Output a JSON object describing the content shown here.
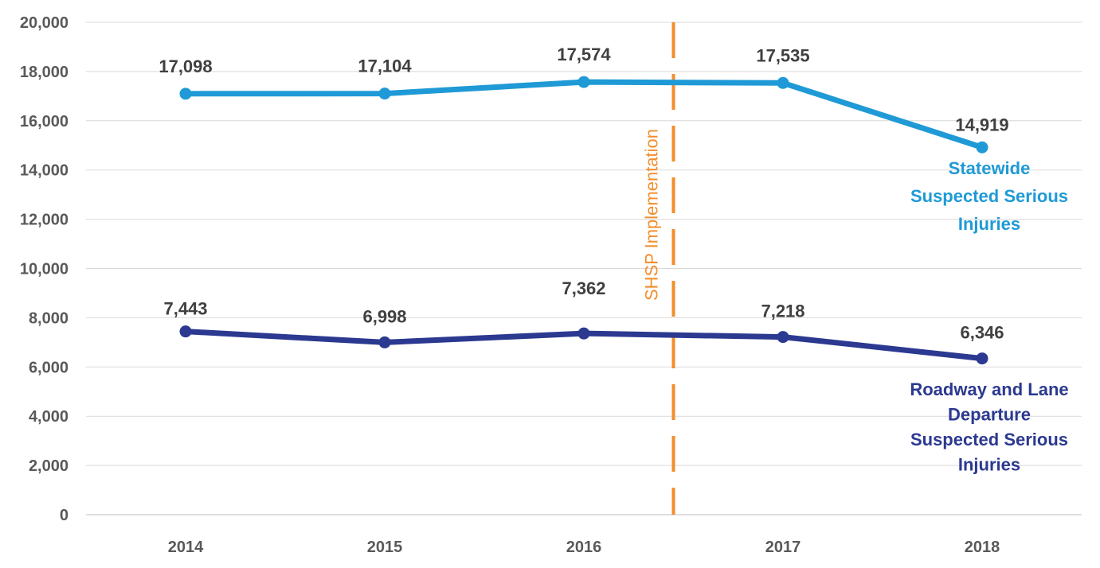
{
  "chart_data": {
    "type": "line",
    "x": [
      "2014",
      "2015",
      "2016",
      "2017",
      "2018"
    ],
    "ylim": [
      0,
      20000
    ],
    "ytick_step": 2000,
    "yticks": [
      "0",
      "2,000",
      "4,000",
      "6,000",
      "8,000",
      "10,000",
      "12,000",
      "14,000",
      "16,000",
      "18,000",
      "20,000"
    ],
    "grid": true,
    "series": [
      {
        "name_lines": [
          "Statewide",
          "Suspected Serious",
          "Injuries"
        ],
        "values": [
          17098,
          17104,
          17574,
          17535,
          14919
        ],
        "labels": [
          "17,098",
          "17,104",
          "17,574",
          "17,535",
          "14,919"
        ],
        "color": "#1f9ad6"
      },
      {
        "name_lines": [
          "Roadway and Lane",
          "Departure",
          "Suspected Serious",
          "Injuries"
        ],
        "values": [
          7443,
          6998,
          7362,
          7218,
          6346
        ],
        "labels": [
          "7,443",
          "6,998",
          "7,362",
          "7,218",
          "6,346"
        ],
        "color": "#2b3990"
      }
    ],
    "annotation": {
      "text": "SHSP Implementation",
      "x_position": 2016.45,
      "color": "#f28e2b",
      "style": "dashed"
    }
  }
}
